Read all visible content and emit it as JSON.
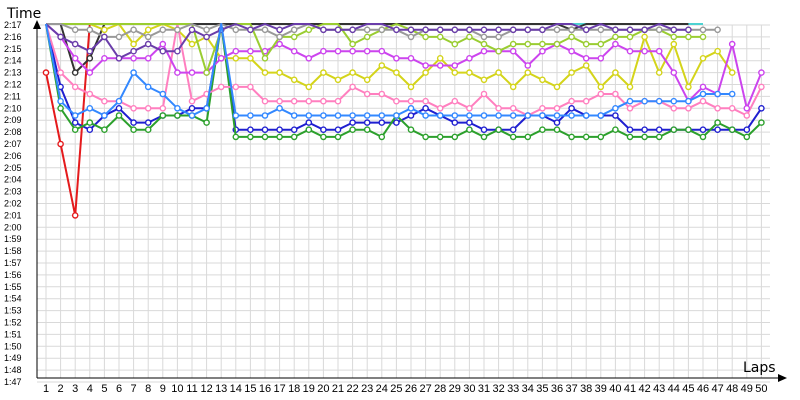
{
  "chart_data": {
    "type": "line",
    "title": "",
    "xlabel": "Laps",
    "ylabel": "Time",
    "grid": true,
    "legend": "none",
    "xlim": [
      1,
      50
    ],
    "ylim": [
      1.4667,
      2.3
    ],
    "x_ticks": [
      "1",
      "2",
      "3",
      "4",
      "5",
      "6",
      "7",
      "8",
      "9",
      "10",
      "11",
      "12",
      "13",
      "14",
      "15",
      "16",
      "17",
      "18",
      "19",
      "20",
      "21",
      "22",
      "23",
      "24",
      "25",
      "26",
      "27",
      "28",
      "29",
      "30",
      "31",
      "32",
      "33",
      "34",
      "35",
      "36",
      "37",
      "38",
      "39",
      "40",
      "41",
      "42",
      "43",
      "44",
      "45",
      "46",
      "47",
      "48",
      "49",
      "50"
    ],
    "y_ticks": [
      "1:47",
      "1:48",
      "1:49",
      "1:50",
      "1:51",
      "1:52",
      "1:53",
      "1:54",
      "1:55",
      "1:56",
      "1:57",
      "1:58",
      "1:59",
      "2:00",
      "2:01",
      "2:02",
      "2:03",
      "2:04",
      "2:05",
      "2:06",
      "2:07",
      "2:08",
      "2:09",
      "2:10",
      "2:11",
      "2:12",
      "2:13",
      "2:14",
      "2:15",
      "2:16",
      "2:17"
    ],
    "series": [
      {
        "color": "#e41a1c",
        "values": [
          1.9,
          1.8,
          1.7,
          2.1,
          2.1,
          2.3,
          2.12,
          2.12,
          2.22,
          2.28,
          2.18,
          2.06,
          null,
          2.3,
          2.12,
          2.1,
          2.08,
          2.18,
          2.3,
          2.18,
          2.26,
          null,
          null,
          null,
          null,
          null,
          null,
          null,
          null,
          null,
          null,
          null,
          null,
          null,
          null,
          null,
          null,
          null,
          null,
          null,
          null,
          null,
          null,
          null,
          null,
          null,
          null,
          null,
          null,
          null
        ]
      },
      {
        "color": "#4dd2d2",
        "values": [
          2.3,
          2.05,
          2.15,
          2.1,
          2.05,
          2.07,
          2.26,
          2.18,
          2.14,
          2.2,
          2.15,
          2.22,
          2.3,
          null,
          null,
          null,
          null,
          null,
          null,
          2.3,
          null,
          null,
          null,
          null,
          null,
          null,
          null,
          null,
          null,
          null,
          null,
          null,
          null,
          null,
          null,
          2.1,
          2.28,
          2.3,
          2.12,
          2.12,
          2.3,
          2.3,
          2.3,
          2.3,
          2.26,
          2.3,
          null,
          null,
          null,
          null
        ]
      },
      {
        "color": "#333333",
        "values": [
          2.3,
          2.0,
          1.9,
          1.92,
          2.0,
          2.0,
          1.98,
          1.98,
          2.0,
          2.0,
          1.97,
          2.0,
          2.3,
          2.04,
          2.03,
          2.0,
          2.02,
          2.0,
          2.01,
          2.03,
          2.03,
          2.01,
          2.03,
          2.03,
          1.97,
          2.0,
          1.98,
          1.98,
          1.98,
          1.97,
          1.99,
          1.98,
          1.99,
          2.0,
          1.98,
          1.99,
          1.96,
          1.99,
          1.98,
          1.97,
          1.97,
          1.99,
          2.29,
          2.27,
          2.25,
          null,
          null,
          null,
          null,
          null
        ]
      },
      {
        "color": "#1f1fd0",
        "values": [
          2.3,
          1.88,
          1.83,
          1.82,
          1.84,
          1.85,
          1.83,
          1.83,
          1.84,
          1.84,
          1.85,
          1.85,
          2.3,
          1.82,
          1.82,
          1.82,
          1.82,
          1.82,
          1.83,
          1.82,
          1.82,
          1.83,
          1.83,
          1.83,
          1.83,
          1.84,
          1.85,
          1.84,
          1.83,
          1.83,
          1.82,
          1.82,
          1.82,
          1.84,
          1.84,
          1.83,
          1.85,
          1.84,
          1.84,
          1.84,
          1.82,
          1.82,
          1.82,
          1.82,
          1.82,
          1.82,
          1.82,
          1.82,
          1.82,
          1.85
        ]
      },
      {
        "color": "#2ca02c",
        "values": [
          2.3,
          1.85,
          1.82,
          1.83,
          1.82,
          1.84,
          1.82,
          1.82,
          1.84,
          1.84,
          1.84,
          1.83,
          2.3,
          1.81,
          1.81,
          1.81,
          1.81,
          1.81,
          1.82,
          1.81,
          1.81,
          1.82,
          1.82,
          1.81,
          1.84,
          1.82,
          1.81,
          1.81,
          1.81,
          1.82,
          1.81,
          1.82,
          1.81,
          1.81,
          1.82,
          1.82,
          1.81,
          1.81,
          1.81,
          1.82,
          1.81,
          1.81,
          1.81,
          1.82,
          1.82,
          1.81,
          1.83,
          1.82,
          1.81,
          1.83
        ]
      },
      {
        "color": "#d4d41a",
        "values": [
          2.2,
          2.3,
          2.22,
          1.98,
          1.96,
          1.98,
          1.94,
          1.96,
          1.97,
          1.96,
          1.94,
          1.95,
          1.92,
          1.92,
          1.92,
          1.9,
          1.9,
          1.89,
          1.88,
          1.9,
          1.89,
          1.9,
          1.89,
          1.91,
          1.9,
          1.88,
          1.9,
          1.92,
          1.9,
          1.9,
          1.89,
          1.9,
          1.88,
          1.9,
          1.89,
          1.88,
          1.9,
          1.91,
          1.88,
          1.9,
          1.88,
          1.95,
          1.9,
          1.94,
          1.88,
          1.92,
          1.93,
          1.9,
          null,
          null
        ]
      },
      {
        "color": "#ff7fbf",
        "values": [
          2.3,
          1.9,
          1.88,
          1.87,
          1.86,
          1.86,
          1.85,
          1.85,
          1.85,
          2.3,
          1.86,
          1.87,
          1.88,
          1.88,
          1.88,
          1.86,
          1.86,
          1.86,
          1.86,
          1.86,
          1.86,
          1.88,
          1.87,
          1.87,
          1.86,
          1.86,
          1.86,
          1.85,
          1.86,
          1.85,
          1.87,
          1.85,
          1.85,
          1.84,
          1.85,
          1.85,
          1.86,
          1.86,
          1.87,
          1.87,
          1.85,
          1.86,
          1.86,
          1.85,
          1.85,
          1.86,
          1.85,
          1.85,
          1.84,
          1.88
        ]
      },
      {
        "color": "#cc44ee",
        "values": [
          2.3,
          1.95,
          1.92,
          1.9,
          1.92,
          1.92,
          1.92,
          1.92,
          1.94,
          1.9,
          1.9,
          1.9,
          1.92,
          1.93,
          1.93,
          1.93,
          1.94,
          1.93,
          1.92,
          1.93,
          1.93,
          1.93,
          1.93,
          1.93,
          1.92,
          1.92,
          1.91,
          1.91,
          1.91,
          1.92,
          1.93,
          1.93,
          1.93,
          1.91,
          1.93,
          1.94,
          1.93,
          1.92,
          1.92,
          1.94,
          1.93,
          1.93,
          1.93,
          1.9,
          1.86,
          1.88,
          1.87,
          1.94,
          1.85,
          1.9
        ]
      },
      {
        "color": "#9acd32",
        "values": [
          2.3,
          2.05,
          2.0,
          1.98,
          1.97,
          2.0,
          1.99,
          1.99,
          2.1,
          2.06,
          2.05,
          1.9,
          1.96,
          1.97,
          1.97,
          1.92,
          1.95,
          1.95,
          1.96,
          1.97,
          1.99,
          1.94,
          1.95,
          1.96,
          1.97,
          1.96,
          1.95,
          1.95,
          1.94,
          1.95,
          1.94,
          1.93,
          1.94,
          1.94,
          1.94,
          1.94,
          1.95,
          1.94,
          1.94,
          1.95,
          1.95,
          1.96,
          1.96,
          1.95,
          1.95,
          1.95,
          null,
          null,
          null,
          null
        ]
      },
      {
        "color": "#999999",
        "values": [
          2.3,
          1.97,
          1.96,
          1.96,
          1.95,
          1.95,
          1.96,
          1.95,
          1.96,
          1.96,
          1.97,
          1.96,
          1.98,
          1.96,
          1.96,
          1.96,
          1.95,
          1.96,
          1.97,
          1.96,
          1.96,
          1.96,
          1.96,
          1.96,
          1.96,
          1.95,
          1.96,
          1.96,
          1.96,
          1.96,
          1.95,
          1.95,
          1.96,
          1.96,
          1.96,
          1.96,
          1.96,
          1.96,
          1.96,
          1.96,
          1.96,
          1.96,
          1.96,
          1.96,
          1.96,
          1.96,
          1.96,
          null,
          null,
          null
        ]
      },
      {
        "color": "#6a3daa",
        "values": [
          2.3,
          1.95,
          1.94,
          1.93,
          1.95,
          1.92,
          1.93,
          1.94,
          1.93,
          1.93,
          1.96,
          1.95,
          1.96,
          1.97,
          1.96,
          1.97,
          1.96,
          1.97,
          1.97,
          1.96,
          1.96,
          1.96,
          1.97,
          1.97,
          1.96,
          1.96,
          1.96,
          1.96,
          1.96,
          1.96,
          1.96,
          1.96,
          1.96,
          1.96,
          1.96,
          1.97,
          1.97,
          1.96,
          1.97,
          1.96,
          1.96,
          1.96,
          1.97,
          1.96,
          1.96,
          null,
          null,
          null,
          null,
          null
        ]
      },
      {
        "color": "#3388ff",
        "values": [
          2.3,
          1.86,
          1.84,
          1.85,
          1.84,
          1.86,
          1.9,
          1.88,
          1.87,
          1.85,
          1.84,
          1.85,
          2.3,
          1.84,
          1.84,
          1.84,
          1.85,
          1.84,
          1.84,
          1.84,
          1.84,
          1.84,
          1.84,
          1.84,
          1.84,
          1.85,
          1.84,
          1.84,
          1.84,
          1.84,
          1.84,
          1.84,
          1.84,
          1.84,
          1.84,
          1.84,
          1.84,
          1.84,
          1.84,
          1.85,
          1.86,
          1.86,
          1.86,
          1.86,
          1.86,
          1.87,
          1.87,
          1.87,
          null,
          null
        ]
      }
    ]
  }
}
